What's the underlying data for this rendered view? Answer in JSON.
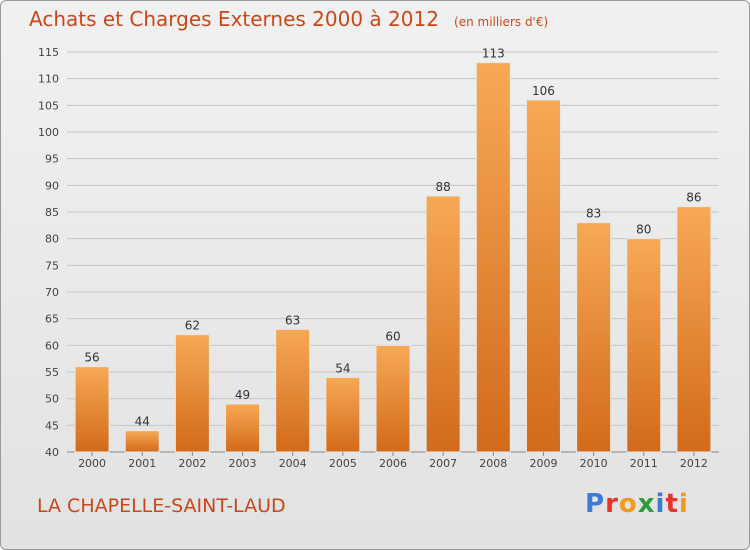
{
  "header": {
    "title": "Achats et Charges Externes 2000 à 2012",
    "unit": "(en milliers d'€)"
  },
  "footer": {
    "city": "LA CHAPELLE-SAINT-LAUD",
    "logo_letters": [
      "P",
      "r",
      "o",
      "x",
      "i",
      "t",
      "i"
    ],
    "logo_colors": [
      "#3a7bd5",
      "#e8332a",
      "#f29a1e",
      "#2d9c3c",
      "#3a7bd5",
      "#e8332a",
      "#f29a1e"
    ]
  },
  "colors": {
    "title": "#c8481b",
    "bar_top": "#f7a955",
    "bar_bottom": "#d26a1a",
    "grid": "#c6c6c6",
    "axis_text": "#444444"
  },
  "chart_data": {
    "type": "bar",
    "title": "Achats et Charges Externes 2000 à 2012",
    "categories": [
      "2000",
      "2001",
      "2002",
      "2003",
      "2004",
      "2005",
      "2006",
      "2007",
      "2008",
      "2009",
      "2010",
      "2011",
      "2012"
    ],
    "values": [
      56,
      44,
      62,
      49,
      63,
      54,
      60,
      88,
      113,
      106,
      83,
      80,
      86
    ],
    "xlabel": "",
    "ylabel": "",
    "ylim": [
      40,
      115
    ],
    "yticks": [
      40,
      45,
      50,
      55,
      60,
      65,
      70,
      75,
      80,
      85,
      90,
      95,
      100,
      105,
      110,
      115
    ],
    "grid": true,
    "data_labels": true
  }
}
